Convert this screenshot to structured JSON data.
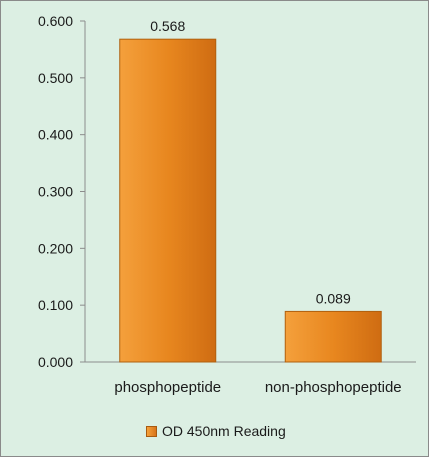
{
  "chart_data": {
    "type": "bar",
    "categories": [
      "phosphopeptide",
      "non-phosphopeptide"
    ],
    "series": [
      {
        "name": "OD 450nm Reading",
        "values": [
          0.568,
          0.089
        ]
      }
    ],
    "data_labels": [
      "0.568",
      "0.089"
    ],
    "y_ticks": [
      "0.000",
      "0.100",
      "0.200",
      "0.300",
      "0.400",
      "0.500",
      "0.600"
    ],
    "ylim": [
      0,
      0.6
    ],
    "grid": false,
    "legend_position": "bottom",
    "colors": {
      "bar": "#e8871f",
      "background": "#dcefe3"
    }
  }
}
